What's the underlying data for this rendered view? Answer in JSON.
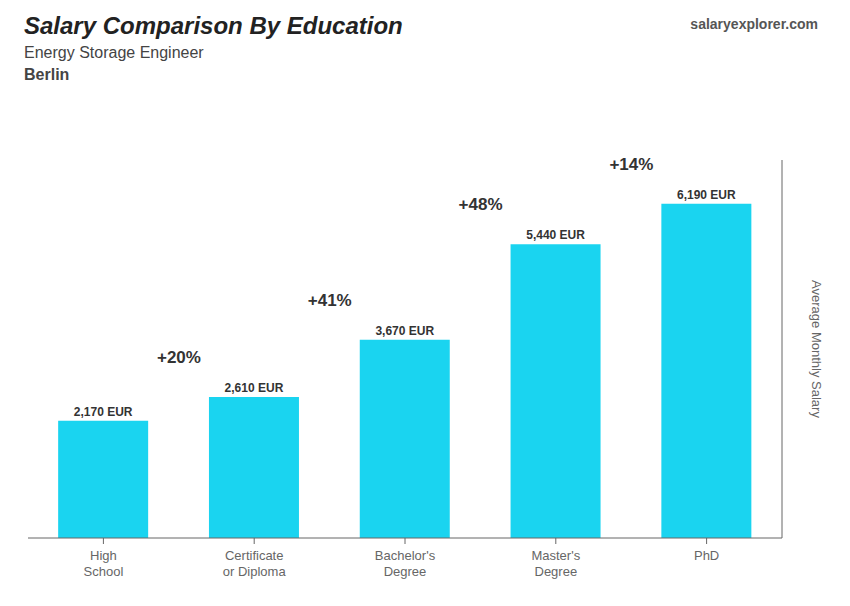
{
  "chart_data": {
    "type": "bar",
    "title": "Salary Comparison By Education",
    "subtitle": [
      "Energy Storage Engineer",
      "Berlin"
    ],
    "watermark": "salaryexplorer.com",
    "ylabel": "Average Monthly Salary",
    "categories": [
      "High\nSchool",
      "Certificate\nor Diploma",
      "Bachelor's\nDegree",
      "Master's\nDegree",
      "PhD"
    ],
    "values": [
      2170,
      2610,
      3670,
      5440,
      6190
    ],
    "value_labels": [
      "2,170 EUR",
      "2,610 EUR",
      "3,670 EUR",
      "5,440 EUR",
      "6,190 EUR"
    ],
    "data_labels": true,
    "annotations": [
      "+20%",
      "+41%",
      "+48%",
      "+14%"
    ],
    "color": "#1ad4f0",
    "ylim": [
      0,
      7000
    ],
    "tick_labels": "x",
    "grid": false
  }
}
